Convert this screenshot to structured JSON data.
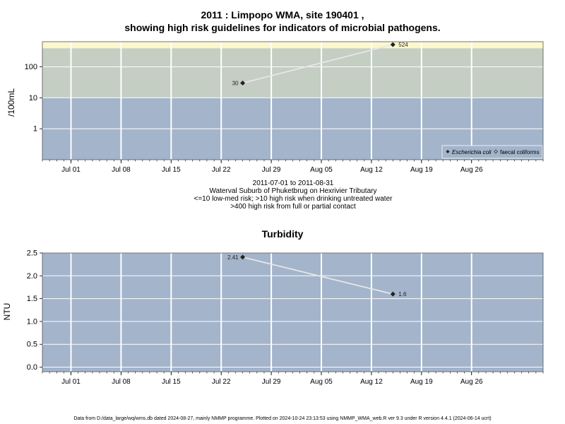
{
  "chart_data": [
    {
      "type": "line",
      "title_line1": "2011 : Limpopo WMA, site 190401 ,",
      "title_line2": "showing high risk guidelines for indicators of microbial pathogens.",
      "ylabel": "/100mL",
      "yscale": "log",
      "ylim": [
        0.1,
        650
      ],
      "xlim": [
        "2011-06-27",
        "2011-09-05"
      ],
      "x_ticks": [
        "Jul 01",
        "Jul 08",
        "Jul 15",
        "Jul 22",
        "Jul 29",
        "Aug 05",
        "Aug 12",
        "Aug 19",
        "Aug 26"
      ],
      "x_tick_dates": [
        "2011-07-01",
        "2011-07-08",
        "2011-07-15",
        "2011-07-22",
        "2011-07-29",
        "2011-08-05",
        "2011-08-12",
        "2011-08-19",
        "2011-08-26"
      ],
      "y_ticks": [
        1,
        10,
        100
      ],
      "y_tick_labels": [
        "1",
        "10",
        "100"
      ],
      "bands": [
        {
          "from": 0.1,
          "to": 10,
          "color": "#a3b4cb"
        },
        {
          "from": 10,
          "to": 400,
          "color": "#c4cec3"
        },
        {
          "from": 400,
          "to": 650,
          "color": "#fbf8ce"
        }
      ],
      "series": [
        {
          "name": "Escherichia coli",
          "marker": "filled-diamond",
          "points": [
            {
              "x": "2011-07-25",
              "y": 30,
              "label": "30"
            },
            {
              "x": "2011-08-15",
              "y": 524,
              "label": "524"
            }
          ]
        }
      ],
      "legend": {
        "position": "bottom-right",
        "entries": [
          "Escherichia coli",
          "faecal coliforms"
        ]
      },
      "captions": [
        "2011-07-01 to 2011-08-31",
        "Waterval Suburb of Phuketbrug on Hexrivier Tributary",
        "<=10 low-med risk; >10 high risk when drinking untreated water",
        ">400 high risk from full or partial contact"
      ]
    },
    {
      "type": "line",
      "title": "Turbidity",
      "ylabel": "NTU",
      "ylim": [
        -0.1,
        2.5
      ],
      "xlim": [
        "2011-06-27",
        "2011-09-05"
      ],
      "x_ticks": [
        "Jul 01",
        "Jul 08",
        "Jul 15",
        "Jul 22",
        "Jul 29",
        "Aug 05",
        "Aug 12",
        "Aug 19",
        "Aug 26"
      ],
      "x_tick_dates": [
        "2011-07-01",
        "2011-07-08",
        "2011-07-15",
        "2011-07-22",
        "2011-07-29",
        "2011-08-05",
        "2011-08-12",
        "2011-08-19",
        "2011-08-26"
      ],
      "y_ticks": [
        0,
        0.5,
        1,
        1.5,
        2,
        2.5
      ],
      "y_tick_labels": [
        "0.0",
        "0.5",
        "1.0",
        "1.5",
        "2.0",
        "2.5"
      ],
      "background": "#a3b4cb",
      "series": [
        {
          "marker": "filled-diamond",
          "points": [
            {
              "x": "2011-07-25",
              "y": 2.41,
              "label": "2.41"
            },
            {
              "x": "2011-08-15",
              "y": 1.6,
              "label": "1.6"
            }
          ]
        }
      ]
    }
  ],
  "footer": "Data from D:/data_large/wq/wms.db dated 2024-08-27, mainly NMMP programme. Plotted on 2024-10-24 23:13:53 using NMMP_WMA_web.R ver 9.3 under R version 4.4.1 (2024-06-14 ucrt)"
}
